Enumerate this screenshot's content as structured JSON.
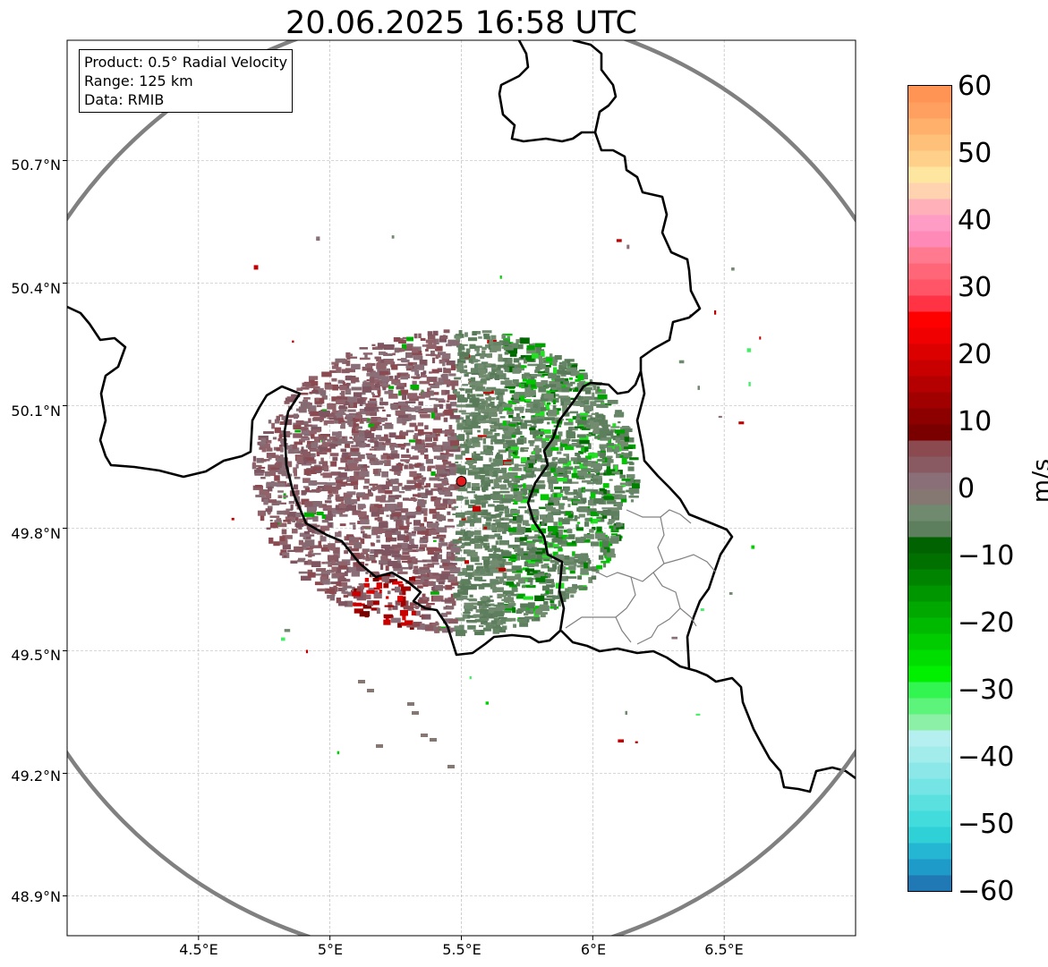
{
  "title": "20.06.2025 16:58 UTC",
  "info": {
    "product": "Product: 0.5° Radial Velocity",
    "range": "Range: 125 km",
    "source": "Data: RMIB"
  },
  "map": {
    "lon_range": [
      4.0,
      7.0
    ],
    "lat_range": [
      48.8,
      51.0
    ],
    "lat_ticks": [
      "50.7°N",
      "50.4°N",
      "50.1°N",
      "49.8°N",
      "49.5°N",
      "49.2°N",
      "48.9°N"
    ],
    "lon_ticks": [
      "4.5°E",
      "5°E",
      "5.5°E",
      "6°E",
      "6.5°E"
    ],
    "radar_site": {
      "lon": 5.5,
      "lat": 49.915,
      "color": "#e31a1c"
    },
    "range_ring_color": "#808080",
    "grid": true
  },
  "colorbar": {
    "label": "m/s",
    "min": -60,
    "max": 60,
    "ticks": [
      "60",
      "50",
      "40",
      "30",
      "20",
      "10",
      "0",
      "−10",
      "−20",
      "−30",
      "−40",
      "−50",
      "−60"
    ],
    "colors": [
      "#2079b4",
      "#1f9bc9",
      "#24b6d2",
      "#2fd1d7",
      "#42dcdc",
      "#5be0e0",
      "#74e4e4",
      "#8ce8e8",
      "#a3ecec",
      "#b6efef",
      "#8cf0a6",
      "#5cf47a",
      "#33f552",
      "#00f000",
      "#00de00",
      "#00cc00",
      "#00ba00",
      "#00a800",
      "#009600",
      "#008400",
      "#007000",
      "#006200",
      "#5e7f5e",
      "#6f8a6e",
      "#857873",
      "#8a6e78",
      "#8a5a62",
      "#8a4a50",
      "#7a0000",
      "#8c0000",
      "#a00000",
      "#b40000",
      "#c80000",
      "#dc0000",
      "#f00000",
      "#ff0000",
      "#ff3344",
      "#ff5566",
      "#ff6677",
      "#ff7a8e",
      "#ff8ab8",
      "#ff9cc6",
      "#ffb0b8",
      "#ffd2b0",
      "#ffe6a0",
      "#ffd08a",
      "#ffc07a",
      "#ffb06a",
      "#ffa060",
      "#ff9454"
    ]
  }
}
